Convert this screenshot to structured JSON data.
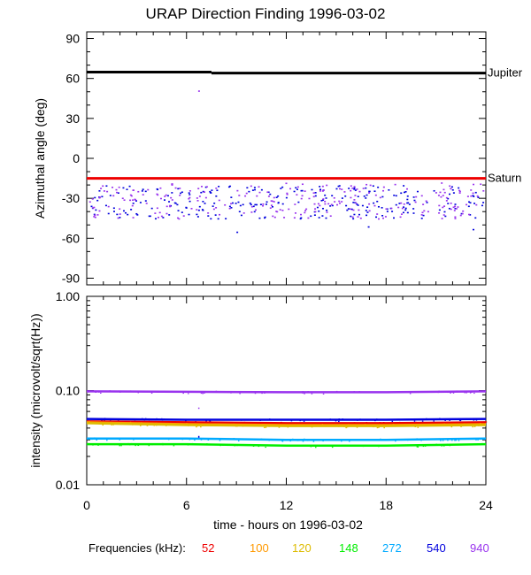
{
  "chart_data": [
    {
      "type": "scatter",
      "title": "URAP Direction Finding  1996-03-02",
      "ylabel": "Azimuthal angle (deg)",
      "xlim": [
        0,
        24
      ],
      "ylim": [
        -95,
        95
      ],
      "yticks": [
        90,
        60,
        30,
        0,
        -30,
        -60,
        -90
      ],
      "yticklabels": [
        "90",
        "60",
        "30",
        "0",
        "-30",
        "-60",
        "-90"
      ],
      "reference_lines": [
        {
          "name": "Jupiter",
          "color": "#000000",
          "segments": [
            [
              0,
              64.8,
              7.5,
              64.8
            ],
            [
              7.5,
              64.0,
              24,
              64.0
            ]
          ]
        },
        {
          "name": "Saturn",
          "color": "#ee0000",
          "segments": [
            [
              0,
              -15.0,
              24,
              -15.0
            ]
          ]
        }
      ],
      "series": [
        {
          "freq": "540",
          "color": "#0000dd",
          "y_range": [
            -45,
            -20
          ],
          "outliers": [
            [
              9,
              -55
            ],
            [
              16.9,
              -51
            ],
            [
              23.2,
              -53
            ]
          ]
        },
        {
          "freq": "940",
          "color": "#9933ee",
          "y_range": [
            -45,
            -18
          ],
          "outliers": [
            [
              6.7,
              51
            ]
          ]
        }
      ],
      "grid": false
    },
    {
      "type": "scatter",
      "ylabel": "intensity (microvolt/sqrt(Hz))",
      "xlabel": "time - hours on 1996-03-02",
      "xlim": [
        0,
        24
      ],
      "xticks": [
        0,
        6,
        12,
        18,
        24
      ],
      "xticklabels": [
        "0",
        "6",
        "12",
        "18",
        "24"
      ],
      "ylim": [
        0.01,
        1.0
      ],
      "log_scale_y": true,
      "yticks": [
        1.0,
        0.1,
        0.01
      ],
      "yticklabels": [
        "1.00",
        "0.10",
        "0.01"
      ],
      "series": [
        {
          "freq": "940",
          "color": "#9933ee",
          "values": [
            [
              0,
              0.098
            ],
            [
              6,
              0.097
            ],
            [
              12,
              0.096
            ],
            [
              18,
              0.096
            ],
            [
              24,
              0.098
            ]
          ]
        },
        {
          "freq": "540",
          "color": "#0000dd",
          "values": [
            [
              0,
              0.05
            ],
            [
              6,
              0.049
            ],
            [
              12,
              0.049
            ],
            [
              18,
              0.049
            ],
            [
              24,
              0.05
            ]
          ]
        },
        {
          "freq": "52",
          "color": "#ee0000",
          "values": [
            [
              0,
              0.047
            ],
            [
              6,
              0.046
            ],
            [
              12,
              0.045
            ],
            [
              18,
              0.045
            ],
            [
              24,
              0.046
            ]
          ]
        },
        {
          "freq": "100",
          "color": "#ff9900",
          "values": [
            [
              0,
              0.046
            ],
            [
              6,
              0.044
            ],
            [
              12,
              0.043
            ],
            [
              18,
              0.043
            ],
            [
              24,
              0.044
            ]
          ]
        },
        {
          "freq": "120",
          "color": "#ddbb00",
          "values": [
            [
              0,
              0.045
            ],
            [
              6,
              0.043
            ],
            [
              12,
              0.042
            ],
            [
              18,
              0.042
            ],
            [
              24,
              0.043
            ]
          ]
        },
        {
          "freq": "272",
          "color": "#00aaff",
          "values": [
            [
              0,
              0.031
            ],
            [
              6,
              0.031
            ],
            [
              12,
              0.03
            ],
            [
              18,
              0.03
            ],
            [
              24,
              0.031
            ]
          ]
        },
        {
          "freq": "148",
          "color": "#00ee00",
          "values": [
            [
              0,
              0.027
            ],
            [
              6,
              0.027
            ],
            [
              12,
              0.026
            ],
            [
              18,
              0.026
            ],
            [
              24,
              0.027
            ]
          ]
        }
      ],
      "grid": false
    }
  ],
  "legend": {
    "label": "Frequencies (kHz):",
    "items": [
      {
        "label": "52",
        "color": "#ee0000"
      },
      {
        "label": "100",
        "color": "#ff9900"
      },
      {
        "label": "120",
        "color": "#ddbb00"
      },
      {
        "label": "148",
        "color": "#00ee00"
      },
      {
        "label": "272",
        "color": "#00aaff"
      },
      {
        "label": "540",
        "color": "#0000dd"
      },
      {
        "label": "940",
        "color": "#9933ee"
      }
    ]
  }
}
